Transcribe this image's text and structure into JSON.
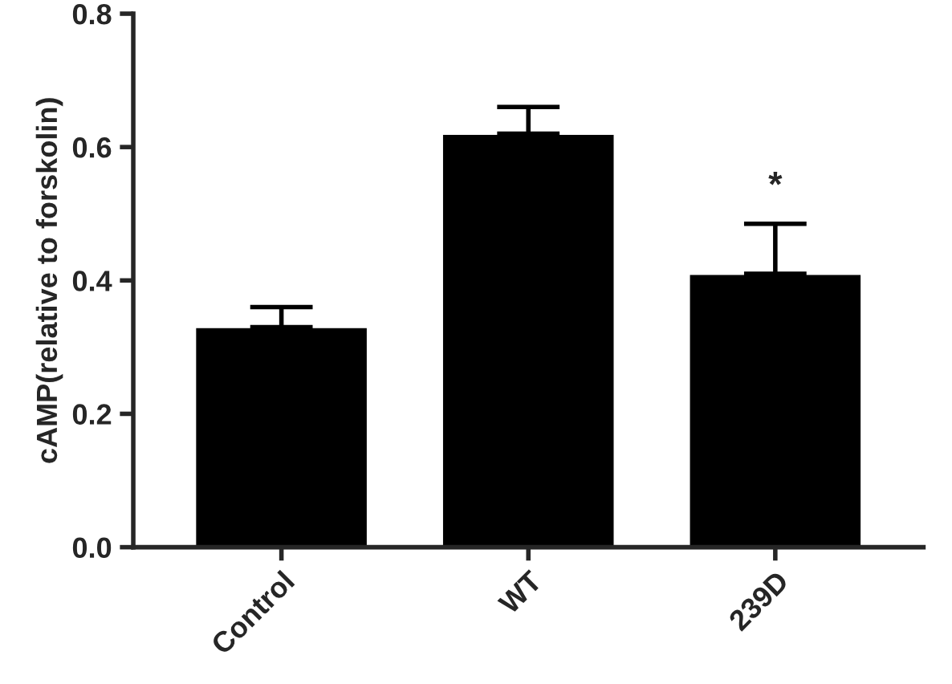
{
  "chart_data": {
    "type": "bar",
    "ylabel": "cAMP(relative to forskolin)",
    "categories": [
      "Control",
      "WT",
      "239D"
    ],
    "values": [
      0.33,
      0.62,
      0.41
    ],
    "errors": [
      [
        0.33,
        0.36
      ],
      [
        0.62,
        0.66
      ],
      [
        0.41,
        0.485
      ]
    ],
    "color": "#000000",
    "ylim": [
      0,
      0.8
    ],
    "yticks": [
      {
        "value": 0,
        "label": "0.0"
      },
      0.2,
      0.4,
      0.6,
      0.8
    ],
    "annotations": [
      "*"
    ]
  }
}
